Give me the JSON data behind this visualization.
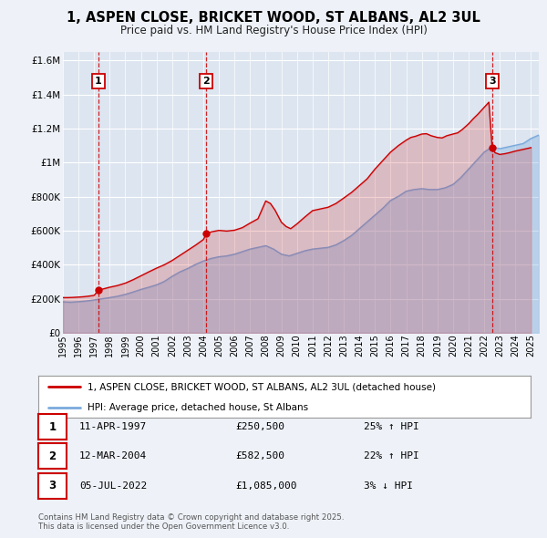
{
  "title": "1, ASPEN CLOSE, BRICKET WOOD, ST ALBANS, AL2 3UL",
  "subtitle": "Price paid vs. HM Land Registry's House Price Index (HPI)",
  "bg_color": "#eef2f8",
  "plot_bg_color": "#dde5f0",
  "grid_color": "#ffffff",
  "red_line_label": "1, ASPEN CLOSE, BRICKET WOOD, ST ALBANS, AL2 3UL (detached house)",
  "blue_line_label": "HPI: Average price, detached house, St Albans",
  "transactions": [
    {
      "num": 1,
      "price": 250500,
      "x": 1997.28
    },
    {
      "num": 2,
      "price": 582500,
      "x": 2004.19
    },
    {
      "num": 3,
      "price": 1085000,
      "x": 2022.51
    }
  ],
  "table_rows": [
    {
      "num": 1,
      "date_str": "11-APR-1997",
      "price_str": "£250,500",
      "pct_str": "25% ↑ HPI"
    },
    {
      "num": 2,
      "date_str": "12-MAR-2004",
      "price_str": "£582,500",
      "pct_str": "22% ↑ HPI"
    },
    {
      "num": 3,
      "date_str": "05-JUL-2022",
      "price_str": "£1,085,000",
      "pct_str": "3% ↓ HPI"
    }
  ],
  "footer": "Contains HM Land Registry data © Crown copyright and database right 2025.\nThis data is licensed under the Open Government Licence v3.0.",
  "ylim": [
    0,
    1650000
  ],
  "xlim_start": 1995.0,
  "xlim_end": 2025.5,
  "yticks": [
    0,
    200000,
    400000,
    600000,
    800000,
    1000000,
    1200000,
    1400000,
    1600000
  ],
  "ytick_labels": [
    "£0",
    "£200K",
    "£400K",
    "£600K",
    "£800K",
    "£1M",
    "£1.2M",
    "£1.4M",
    "£1.6M"
  ],
  "red_color": "#cc0000",
  "blue_color": "#7aaadd",
  "marker_color": "#cc0000",
  "red_pts": [
    [
      1995.0,
      207000
    ],
    [
      1995.3,
      207000
    ],
    [
      1995.6,
      208000
    ],
    [
      1996.0,
      210000
    ],
    [
      1996.3,
      212000
    ],
    [
      1996.6,
      215000
    ],
    [
      1997.0,
      220000
    ],
    [
      1997.28,
      250500
    ],
    [
      1997.5,
      256000
    ],
    [
      1998.0,
      268000
    ],
    [
      1998.5,
      278000
    ],
    [
      1999.0,
      292000
    ],
    [
      1999.5,
      312000
    ],
    [
      2000.0,
      335000
    ],
    [
      2000.5,
      358000
    ],
    [
      2001.0,
      380000
    ],
    [
      2001.5,
      400000
    ],
    [
      2002.0,
      425000
    ],
    [
      2002.5,
      455000
    ],
    [
      2003.0,
      485000
    ],
    [
      2003.5,
      515000
    ],
    [
      2004.0,
      548000
    ],
    [
      2004.19,
      582500
    ],
    [
      2004.5,
      593000
    ],
    [
      2005.0,
      602000
    ],
    [
      2005.5,
      598000
    ],
    [
      2006.0,
      603000
    ],
    [
      2006.5,
      618000
    ],
    [
      2007.0,
      645000
    ],
    [
      2007.5,
      670000
    ],
    [
      2008.0,
      775000
    ],
    [
      2008.3,
      760000
    ],
    [
      2008.6,
      720000
    ],
    [
      2009.0,
      650000
    ],
    [
      2009.3,
      625000
    ],
    [
      2009.6,
      612000
    ],
    [
      2010.0,
      640000
    ],
    [
      2010.5,
      680000
    ],
    [
      2011.0,
      718000
    ],
    [
      2011.5,
      728000
    ],
    [
      2012.0,
      738000
    ],
    [
      2012.5,
      760000
    ],
    [
      2013.0,
      792000
    ],
    [
      2013.5,
      825000
    ],
    [
      2014.0,
      865000
    ],
    [
      2014.5,
      905000
    ],
    [
      2015.0,
      962000
    ],
    [
      2015.5,
      1012000
    ],
    [
      2016.0,
      1062000
    ],
    [
      2016.5,
      1100000
    ],
    [
      2017.0,
      1132000
    ],
    [
      2017.3,
      1148000
    ],
    [
      2017.6,
      1155000
    ],
    [
      2018.0,
      1168000
    ],
    [
      2018.3,
      1170000
    ],
    [
      2018.6,
      1158000
    ],
    [
      2019.0,
      1148000
    ],
    [
      2019.3,
      1145000
    ],
    [
      2019.6,
      1158000
    ],
    [
      2020.0,
      1168000
    ],
    [
      2020.3,
      1175000
    ],
    [
      2020.6,
      1195000
    ],
    [
      2021.0,
      1228000
    ],
    [
      2021.3,
      1258000
    ],
    [
      2021.6,
      1285000
    ],
    [
      2022.0,
      1325000
    ],
    [
      2022.3,
      1355000
    ],
    [
      2022.51,
      1085000
    ],
    [
      2022.7,
      1058000
    ],
    [
      2023.0,
      1048000
    ],
    [
      2023.3,
      1052000
    ],
    [
      2023.6,
      1058000
    ],
    [
      2024.0,
      1068000
    ],
    [
      2024.5,
      1078000
    ],
    [
      2025.0,
      1088000
    ]
  ],
  "blue_pts": [
    [
      1995.0,
      182000
    ],
    [
      1995.5,
      180000
    ],
    [
      1996.0,
      183000
    ],
    [
      1996.5,
      187000
    ],
    [
      1997.0,
      193000
    ],
    [
      1997.5,
      200000
    ],
    [
      1998.0,
      207000
    ],
    [
      1998.5,
      215000
    ],
    [
      1999.0,
      226000
    ],
    [
      1999.5,
      240000
    ],
    [
      2000.0,
      255000
    ],
    [
      2000.5,
      268000
    ],
    [
      2001.0,
      282000
    ],
    [
      2001.5,
      302000
    ],
    [
      2002.0,
      332000
    ],
    [
      2002.5,
      358000
    ],
    [
      2003.0,
      378000
    ],
    [
      2003.5,
      402000
    ],
    [
      2004.0,
      422000
    ],
    [
      2004.5,
      437000
    ],
    [
      2005.0,
      447000
    ],
    [
      2005.5,
      452000
    ],
    [
      2006.0,
      462000
    ],
    [
      2006.5,
      477000
    ],
    [
      2007.0,
      492000
    ],
    [
      2007.5,
      502000
    ],
    [
      2008.0,
      512000
    ],
    [
      2008.5,
      492000
    ],
    [
      2009.0,
      462000
    ],
    [
      2009.5,
      452000
    ],
    [
      2010.0,
      467000
    ],
    [
      2010.5,
      482000
    ],
    [
      2011.0,
      492000
    ],
    [
      2011.5,
      497000
    ],
    [
      2012.0,
      502000
    ],
    [
      2012.5,
      517000
    ],
    [
      2013.0,
      542000
    ],
    [
      2013.5,
      572000
    ],
    [
      2014.0,
      612000
    ],
    [
      2014.5,
      652000
    ],
    [
      2015.0,
      692000
    ],
    [
      2015.5,
      732000
    ],
    [
      2016.0,
      778000
    ],
    [
      2016.5,
      802000
    ],
    [
      2017.0,
      832000
    ],
    [
      2017.5,
      842000
    ],
    [
      2018.0,
      847000
    ],
    [
      2018.5,
      842000
    ],
    [
      2019.0,
      842000
    ],
    [
      2019.5,
      852000
    ],
    [
      2020.0,
      872000
    ],
    [
      2020.5,
      912000
    ],
    [
      2021.0,
      962000
    ],
    [
      2021.5,
      1012000
    ],
    [
      2022.0,
      1062000
    ],
    [
      2022.5,
      1092000
    ],
    [
      2023.0,
      1082000
    ],
    [
      2023.5,
      1092000
    ],
    [
      2024.0,
      1102000
    ],
    [
      2024.5,
      1112000
    ],
    [
      2025.0,
      1142000
    ],
    [
      2025.5,
      1162000
    ]
  ]
}
